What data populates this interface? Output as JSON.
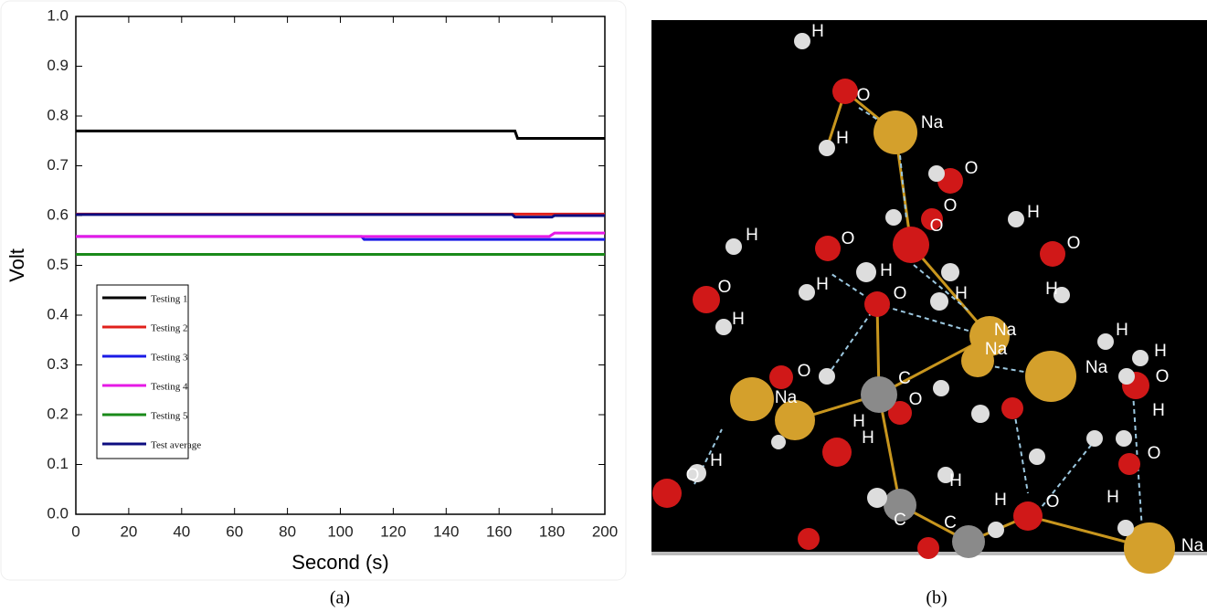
{
  "chart_data": {
    "type": "line",
    "x_label": "Second (s)",
    "y_label": "Volt",
    "xlim": [
      0,
      200
    ],
    "xticks": [
      0,
      20,
      40,
      60,
      80,
      100,
      120,
      140,
      160,
      180,
      200
    ],
    "ylim": [
      0,
      1
    ],
    "yticks": [
      {
        "value": 0,
        "label": "0.0"
      },
      0.1,
      0.2,
      0.3,
      0.4,
      0.5,
      0.6,
      0.7,
      0.8,
      0.9,
      {
        "value": 1,
        "label": "1.0"
      }
    ],
    "series": [
      {
        "name": "Testing 1",
        "color": "#000000",
        "x": [
          0,
          166,
          167,
          200
        ],
        "values": [
          0.77,
          0.77,
          0.755,
          0.755
        ]
      },
      {
        "name": "Testing 2",
        "color": "#e0201b",
        "x": [
          0,
          200
        ],
        "values": [
          0.603,
          0.603
        ]
      },
      {
        "name": "Testing 3",
        "color": "#1a1ae6",
        "x": [
          0,
          108,
          109,
          200
        ],
        "values": [
          0.558,
          0.558,
          0.552,
          0.552
        ]
      },
      {
        "name": "Testing 4",
        "color": "#e619e6",
        "x": [
          0,
          179,
          181,
          200
        ],
        "values": [
          0.558,
          0.558,
          0.565,
          0.565
        ]
      },
      {
        "name": "Testing 5",
        "color": "#1a8a1a",
        "x": [
          0,
          200
        ],
        "values": [
          0.522,
          0.522
        ]
      },
      {
        "name": "Test average",
        "color": "#0d0d80",
        "x": [
          0,
          165,
          166,
          180,
          181,
          200
        ],
        "values": [
          0.602,
          0.602,
          0.597,
          0.597,
          0.6,
          0.6
        ]
      }
    ],
    "legend": "lower-left"
  },
  "captions": [
    "(a)",
    "(b)"
  ],
  "molecule_labels": [
    "H",
    "O",
    "Na",
    "H",
    "O",
    "O",
    "O",
    "H",
    "H",
    "O",
    "H",
    "H",
    "O",
    "H",
    "O",
    "H",
    "O",
    "H",
    "Na",
    "Na",
    "Na",
    "H",
    "H",
    "O",
    "H",
    "Na",
    "O",
    "C",
    "O",
    "H",
    "H",
    "O",
    "C",
    "H",
    "C",
    "H",
    "O",
    "H",
    "Na",
    "O",
    "H"
  ]
}
